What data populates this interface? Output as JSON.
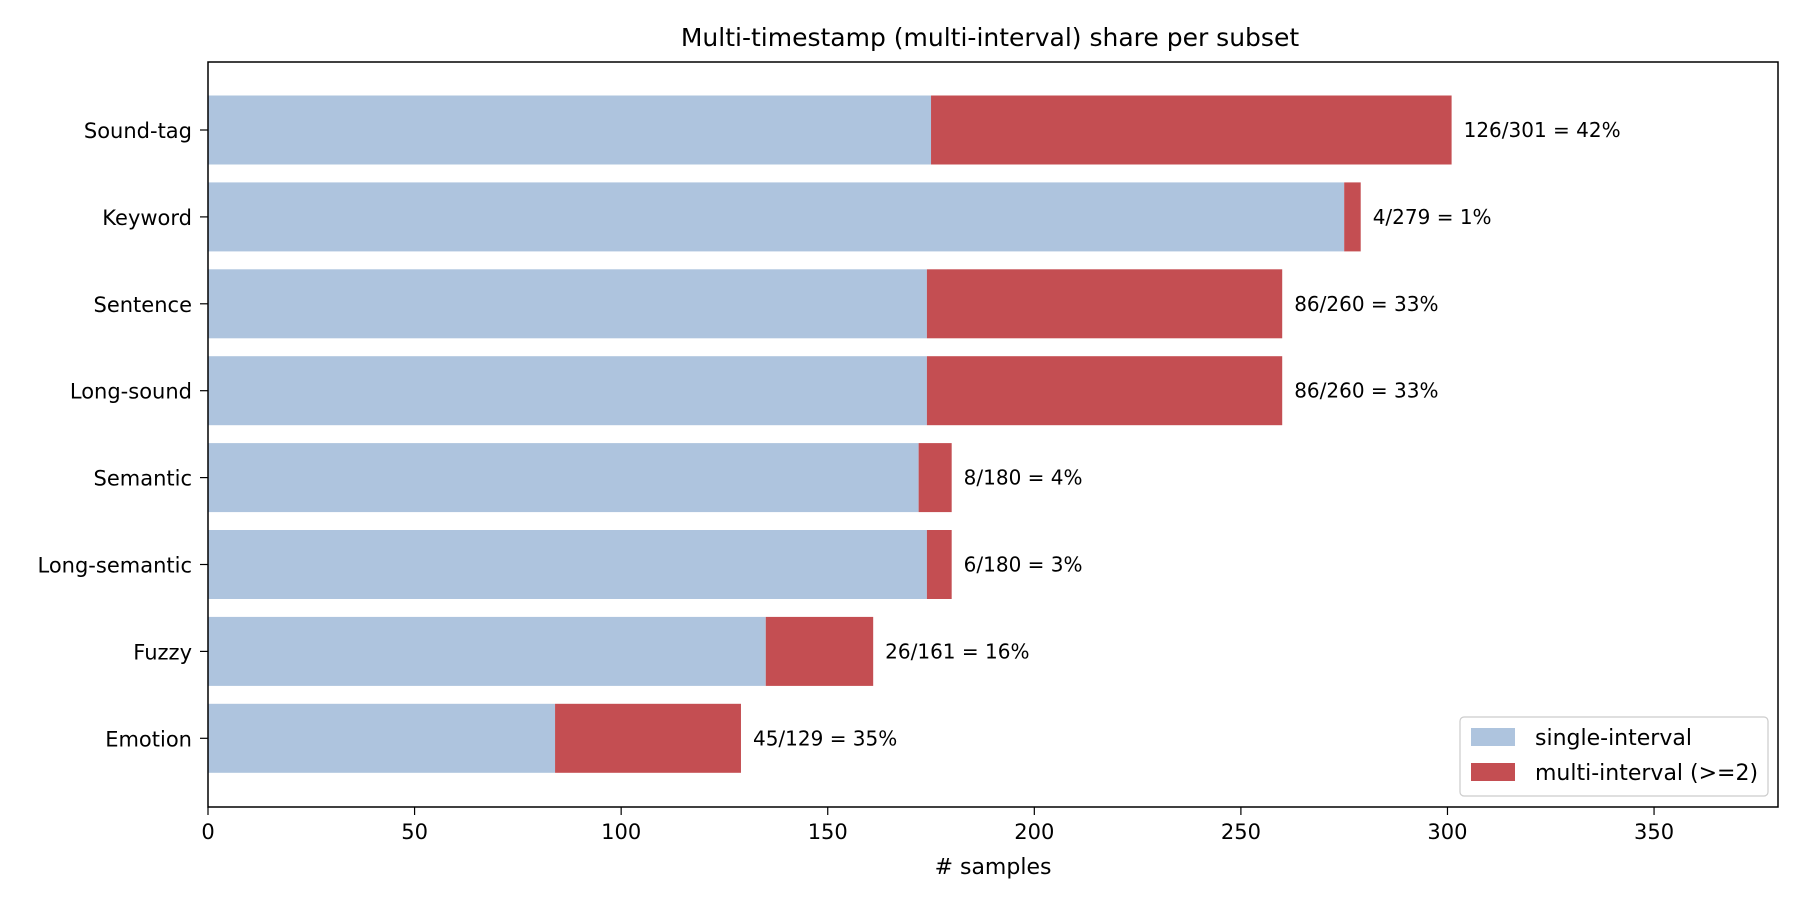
{
  "chart_data": {
    "type": "bar",
    "orientation": "horizontal",
    "stacked": true,
    "title": "Multi-timestamp (multi-interval) share per subset",
    "xlabel": "# samples",
    "ylabel": "",
    "xlim": [
      0,
      380
    ],
    "xticks": [
      0,
      50,
      100,
      150,
      200,
      250,
      300,
      350
    ],
    "categories": [
      "Sound-tag",
      "Keyword",
      "Sentence",
      "Long-sound",
      "Semantic",
      "Long-semantic",
      "Fuzzy",
      "Emotion"
    ],
    "series": [
      {
        "name": "single-interval",
        "color": "#aec4de",
        "values": [
          175,
          275,
          174,
          174,
          172,
          174,
          135,
          84
        ]
      },
      {
        "name": "multi-interval (>=2)",
        "color": "#c44e52",
        "values": [
          126,
          4,
          86,
          86,
          8,
          6,
          26,
          45
        ]
      }
    ],
    "data_labels": [
      "126/301 = 42%",
      "4/279 = 1%",
      "86/260 = 33%",
      "86/260 = 33%",
      "8/180 = 4%",
      "6/180 = 3%",
      "26/161 = 16%",
      "45/129 = 35%"
    ],
    "legend_position": "lower right",
    "grid": false
  }
}
